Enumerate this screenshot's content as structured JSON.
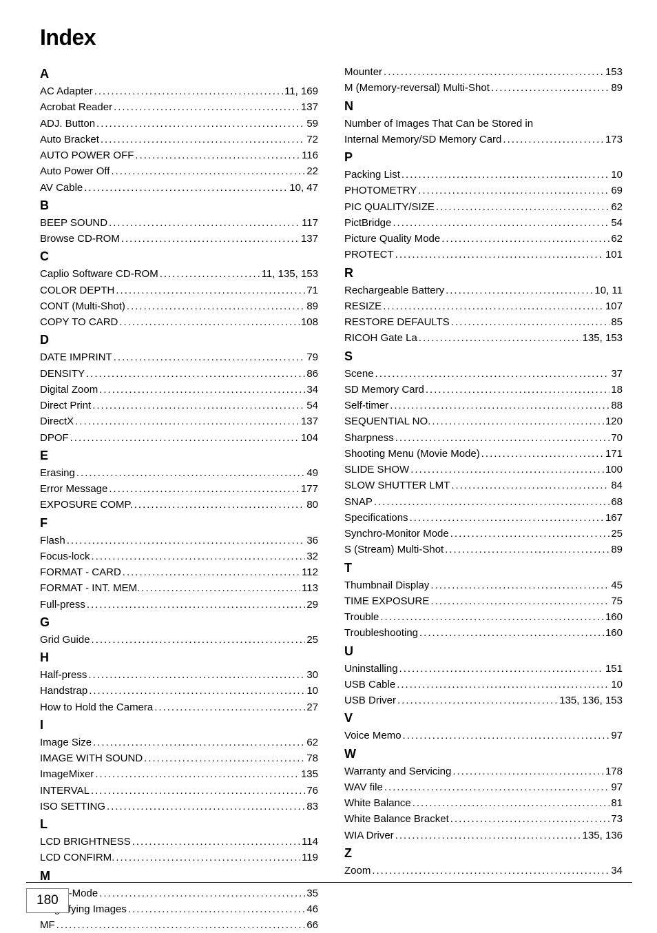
{
  "title": "Index",
  "page_number": "180",
  "style": {
    "title_fontsize": 32,
    "title_fontweight": 900,
    "section_letter_fontsize": 18,
    "section_letter_fontweight": 900,
    "entry_fontsize": 15,
    "line_height": 1.55,
    "background_color": "#ffffff",
    "text_color": "#000000",
    "dot_letter_spacing": 2,
    "pagebox_border_color": "#888888",
    "pagebox_fontsize": 19,
    "column_gap": 38
  },
  "left_column": [
    {
      "type": "letter",
      "text": "A"
    },
    {
      "type": "entry",
      "label": "AC Adapter",
      "pages": "11, 169"
    },
    {
      "type": "entry",
      "label": "Acrobat Reader",
      "pages": "137"
    },
    {
      "type": "entry",
      "label": "ADJ. Button",
      "pages": "59"
    },
    {
      "type": "entry",
      "label": "Auto Bracket",
      "pages": "72"
    },
    {
      "type": "entry",
      "label": "AUTO POWER OFF",
      "pages": "116"
    },
    {
      "type": "entry",
      "label": "Auto Power Off",
      "pages": "22"
    },
    {
      "type": "entry",
      "label": "AV Cable",
      "pages": "10, 47"
    },
    {
      "type": "letter",
      "text": "B"
    },
    {
      "type": "entry",
      "label": "BEEP SOUND",
      "pages": "117"
    },
    {
      "type": "entry",
      "label": "Browse CD-ROM",
      "pages": "137"
    },
    {
      "type": "letter",
      "text": "C"
    },
    {
      "type": "entry",
      "label": "Caplio Software CD-ROM",
      "pages": "11, 135, 153"
    },
    {
      "type": "entry",
      "label": "COLOR DEPTH",
      "pages": "71"
    },
    {
      "type": "entry",
      "label": "CONT (Multi-Shot)",
      "pages": "89"
    },
    {
      "type": "entry",
      "label": "COPY TO CARD",
      "pages": "108"
    },
    {
      "type": "letter",
      "text": "D"
    },
    {
      "type": "entry",
      "label": "DATE IMPRINT",
      "pages": "79"
    },
    {
      "type": "entry",
      "label": "DENSITY",
      "pages": "86"
    },
    {
      "type": "entry",
      "label": "Digital Zoom",
      "pages": "34"
    },
    {
      "type": "entry",
      "label": "Direct Print",
      "pages": "54"
    },
    {
      "type": "entry",
      "label": "DirectX",
      "pages": "137"
    },
    {
      "type": "entry",
      "label": "DPOF",
      "pages": "104"
    },
    {
      "type": "letter",
      "text": "E"
    },
    {
      "type": "entry",
      "label": "Erasing",
      "pages": "49"
    },
    {
      "type": "entry",
      "label": "Error Message",
      "pages": "177"
    },
    {
      "type": "entry",
      "label": "EXPOSURE COMP.",
      "pages": "80"
    },
    {
      "type": "letter",
      "text": "F"
    },
    {
      "type": "entry",
      "label": "Flash",
      "pages": "36"
    },
    {
      "type": "entry",
      "label": "Focus-lock",
      "pages": "32"
    },
    {
      "type": "entry",
      "label": "FORMAT - CARD",
      "pages": "112"
    },
    {
      "type": "entry",
      "label": "FORMAT - INT. MEM.",
      "pages": "113"
    },
    {
      "type": "entry",
      "label": "Full-press",
      "pages": "29"
    },
    {
      "type": "letter",
      "text": "G"
    },
    {
      "type": "entry",
      "label": "Grid Guide",
      "pages": "25"
    },
    {
      "type": "letter",
      "text": "H"
    },
    {
      "type": "entry",
      "label": "Half-press",
      "pages": "30"
    },
    {
      "type": "entry",
      "label": "Handstrap",
      "pages": "10"
    },
    {
      "type": "entry",
      "label": "How to Hold the Camera",
      "pages": "27"
    },
    {
      "type": "letter",
      "text": "I"
    },
    {
      "type": "entry",
      "label": "Image Size",
      "pages": "62"
    },
    {
      "type": "entry",
      "label": "IMAGE WITH SOUND",
      "pages": "78"
    },
    {
      "type": "entry",
      "label": "ImageMixer",
      "pages": "135"
    },
    {
      "type": "entry",
      "label": "INTERVAL",
      "pages": "76"
    },
    {
      "type": "entry",
      "label": "ISO SETTING",
      "pages": "83"
    },
    {
      "type": "letter",
      "text": "L"
    },
    {
      "type": "entry",
      "label": "LCD BRIGHTNESS",
      "pages": "114"
    },
    {
      "type": "entry",
      "label": "LCD CONFIRM.",
      "pages": "119"
    },
    {
      "type": "letter",
      "text": "M"
    },
    {
      "type": "entry",
      "label": "Macro-Mode",
      "pages": "35"
    },
    {
      "type": "entry",
      "label": "Magnifying Images",
      "pages": "46"
    },
    {
      "type": "entry",
      "label": "MF",
      "pages": "66"
    }
  ],
  "right_column": [
    {
      "type": "entry",
      "label": "Mounter",
      "pages": "153"
    },
    {
      "type": "entry",
      "label": "M (Memory-reversal) Multi-Shot",
      "pages": "89"
    },
    {
      "type": "letter",
      "text": "N"
    },
    {
      "type": "entry",
      "label": "Number of Images That Can be Stored in",
      "pages": "",
      "nodots": true
    },
    {
      "type": "entry",
      "label": "Internal Memory/SD Memory Card",
      "pages": "173"
    },
    {
      "type": "letter",
      "text": "P"
    },
    {
      "type": "entry",
      "label": "Packing List",
      "pages": "10"
    },
    {
      "type": "entry",
      "label": "PHOTOMETRY",
      "pages": "69"
    },
    {
      "type": "entry",
      "label": "PIC QUALITY/SIZE",
      "pages": "62"
    },
    {
      "type": "entry",
      "label": "PictBridge",
      "pages": "54"
    },
    {
      "type": "entry",
      "label": "Picture Quality Mode",
      "pages": "62"
    },
    {
      "type": "entry",
      "label": "PROTECT",
      "pages": "101"
    },
    {
      "type": "letter",
      "text": "R"
    },
    {
      "type": "entry",
      "label": "Rechargeable Battery",
      "pages": "10, 11"
    },
    {
      "type": "entry",
      "label": "RESIZE",
      "pages": "107"
    },
    {
      "type": "entry",
      "label": "RESTORE DEFAULTS",
      "pages": "85"
    },
    {
      "type": "entry",
      "label": "RICOH Gate La",
      "pages": "135, 153"
    },
    {
      "type": "letter",
      "text": "S"
    },
    {
      "type": "entry",
      "label": "Scene",
      "pages": "37"
    },
    {
      "type": "entry",
      "label": "SD Memory Card",
      "pages": "18"
    },
    {
      "type": "entry",
      "label": "Self-timer",
      "pages": "88"
    },
    {
      "type": "entry",
      "label": "SEQUENTIAL NO.",
      "pages": "120"
    },
    {
      "type": "entry",
      "label": "Sharpness",
      "pages": "70"
    },
    {
      "type": "entry",
      "label": "Shooting Menu (Movie Mode)",
      "pages": "171"
    },
    {
      "type": "entry",
      "label": "SLIDE SHOW",
      "pages": "100"
    },
    {
      "type": "entry",
      "label": "SLOW SHUTTER LMT",
      "pages": "84"
    },
    {
      "type": "entry",
      "label": "SNAP",
      "pages": "68"
    },
    {
      "type": "entry",
      "label": "Specifications",
      "pages": "167"
    },
    {
      "type": "entry",
      "label": "Synchro-Monitor Mode",
      "pages": "25"
    },
    {
      "type": "entry",
      "label": "S (Stream) Multi-Shot",
      "pages": "89"
    },
    {
      "type": "letter",
      "text": "T"
    },
    {
      "type": "entry",
      "label": "Thumbnail Display",
      "pages": "45"
    },
    {
      "type": "entry",
      "label": "TIME EXPOSURE",
      "pages": "75"
    },
    {
      "type": "entry",
      "label": "Trouble",
      "pages": "160"
    },
    {
      "type": "entry",
      "label": "Troubleshooting",
      "pages": "160"
    },
    {
      "type": "letter",
      "text": "U"
    },
    {
      "type": "entry",
      "label": "Uninstalling",
      "pages": "151"
    },
    {
      "type": "entry",
      "label": "USB Cable",
      "pages": "10"
    },
    {
      "type": "entry",
      "label": "USB Driver",
      "pages": "135, 136, 153"
    },
    {
      "type": "letter",
      "text": "V"
    },
    {
      "type": "entry",
      "label": "Voice Memo",
      "pages": "97"
    },
    {
      "type": "letter",
      "text": "W"
    },
    {
      "type": "entry",
      "label": "Warranty and Servicing",
      "pages": "178"
    },
    {
      "type": "entry",
      "label": "WAV file",
      "pages": "97"
    },
    {
      "type": "entry",
      "label": "White Balance",
      "pages": "81"
    },
    {
      "type": "entry",
      "label": "White Balance Bracket",
      "pages": "73"
    },
    {
      "type": "entry",
      "label": "WIA Driver",
      "pages": "135, 136"
    },
    {
      "type": "letter",
      "text": "Z"
    },
    {
      "type": "entry",
      "label": "Zoom",
      "pages": "34"
    }
  ]
}
